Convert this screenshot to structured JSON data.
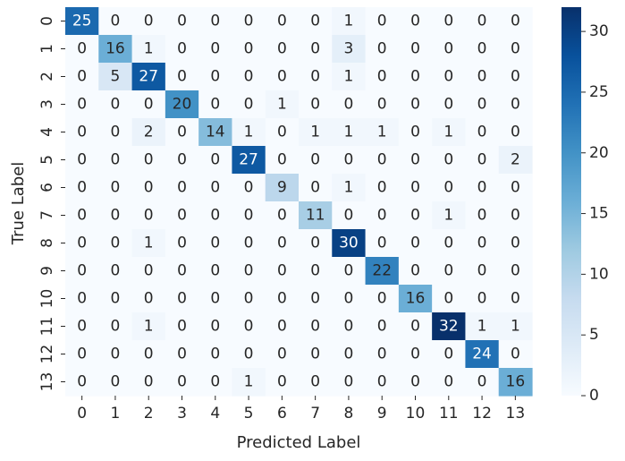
{
  "chart_data": {
    "type": "heatmap",
    "xlabel": "Predicted Label",
    "ylabel": "True Label",
    "x_categories": [
      "0",
      "1",
      "2",
      "3",
      "4",
      "5",
      "6",
      "7",
      "8",
      "9",
      "10",
      "11",
      "12",
      "13"
    ],
    "y_categories": [
      "0",
      "1",
      "2",
      "3",
      "4",
      "5",
      "6",
      "7",
      "8",
      "9",
      "10",
      "11",
      "12",
      "13"
    ],
    "matrix": [
      [
        25,
        0,
        0,
        0,
        0,
        0,
        0,
        0,
        1,
        0,
        0,
        0,
        0,
        0
      ],
      [
        0,
        16,
        1,
        0,
        0,
        0,
        0,
        0,
        3,
        0,
        0,
        0,
        0,
        0
      ],
      [
        0,
        5,
        27,
        0,
        0,
        0,
        0,
        0,
        1,
        0,
        0,
        0,
        0,
        0
      ],
      [
        0,
        0,
        0,
        20,
        0,
        0,
        1,
        0,
        0,
        0,
        0,
        0,
        0,
        0
      ],
      [
        0,
        0,
        2,
        0,
        14,
        1,
        0,
        1,
        1,
        1,
        0,
        1,
        0,
        0
      ],
      [
        0,
        0,
        0,
        0,
        0,
        27,
        0,
        0,
        0,
        0,
        0,
        0,
        0,
        2
      ],
      [
        0,
        0,
        0,
        0,
        0,
        0,
        9,
        0,
        1,
        0,
        0,
        0,
        0,
        0
      ],
      [
        0,
        0,
        0,
        0,
        0,
        0,
        0,
        11,
        0,
        0,
        0,
        1,
        0,
        0
      ],
      [
        0,
        0,
        1,
        0,
        0,
        0,
        0,
        0,
        30,
        0,
        0,
        0,
        0,
        0
      ],
      [
        0,
        0,
        0,
        0,
        0,
        0,
        0,
        0,
        0,
        22,
        0,
        0,
        0,
        0
      ],
      [
        0,
        0,
        0,
        0,
        0,
        0,
        0,
        0,
        0,
        0,
        16,
        0,
        0,
        0
      ],
      [
        0,
        0,
        1,
        0,
        0,
        0,
        0,
        0,
        0,
        0,
        0,
        32,
        1,
        1
      ],
      [
        0,
        0,
        0,
        0,
        0,
        0,
        0,
        0,
        0,
        0,
        0,
        0,
        24,
        0
      ],
      [
        0,
        0,
        0,
        0,
        0,
        1,
        0,
        0,
        0,
        0,
        0,
        0,
        0,
        16
      ]
    ],
    "colorbar": {
      "colormap": "Blues",
      "range": [
        0,
        32
      ],
      "ticks": [
        0,
        5,
        10,
        15,
        20,
        25,
        30
      ]
    }
  }
}
